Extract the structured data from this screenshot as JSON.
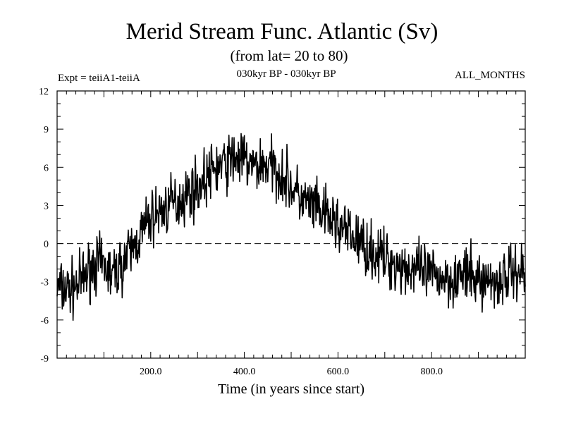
{
  "header": {
    "title": "Merid Stream Func. Atlantic (Sv)",
    "subtitle": "(from lat= 20 to 80)",
    "expt": "Expt = teiiA1-teiiA",
    "period": "030kyr BP - 030kyr BP",
    "months": "ALL_MONTHS"
  },
  "chart_data": {
    "type": "line",
    "title": "Merid Stream Func. Atlantic (Sv)",
    "subtitle": "(from lat= 20 to 80)",
    "xlabel": "Time (in years since start)",
    "ylabel": "",
    "xlim": [
      0,
      1000
    ],
    "ylim": [
      -9,
      12
    ],
    "x_ticks": [
      200,
      400,
      600,
      800
    ],
    "x_tick_labels": [
      "200.0",
      "400.0",
      "600.0",
      "800.0"
    ],
    "y_ticks": [
      -9,
      -6,
      -3,
      0,
      3,
      6,
      9,
      12
    ],
    "y_tick_labels": [
      "-9",
      "-6",
      "-3",
      "0",
      "3",
      "6",
      "9",
      "12"
    ],
    "reference_line": {
      "y": 0,
      "style": "dashed"
    },
    "line_color": "#000000",
    "grid": false,
    "series": [
      {
        "x": [
          0,
          20,
          40,
          60,
          80,
          100,
          120,
          140,
          160,
          180,
          200,
          220,
          240,
          260,
          280,
          300,
          320,
          340,
          360,
          380,
          400,
          420,
          440,
          460,
          480,
          500,
          520,
          540,
          560,
          580,
          600,
          620,
          640,
          660,
          680,
          700,
          720,
          740,
          760,
          780,
          800,
          820,
          840,
          860,
          880,
          900,
          920,
          940,
          960,
          980,
          1000
        ],
        "values": [
          -3.5,
          -3.6,
          -3.4,
          -2.5,
          -1.5,
          -1.8,
          -2.5,
          -1.5,
          -0.5,
          0.8,
          2.0,
          2.5,
          3.0,
          3.4,
          4.0,
          4.5,
          5.2,
          6.0,
          6.2,
          6.8,
          6.5,
          6.0,
          6.3,
          6.0,
          5.5,
          4.5,
          3.5,
          3.0,
          2.5,
          2.0,
          1.5,
          0.8,
          0.3,
          -0.3,
          -0.8,
          -1.2,
          -1.5,
          -1.8,
          -2.0,
          -2.3,
          -2.5,
          -2.6,
          -2.7,
          -2.5,
          -2.6,
          -2.8,
          -2.9,
          -3.0,
          -2.5,
          -2.0,
          -2.2
        ]
      }
    ]
  }
}
